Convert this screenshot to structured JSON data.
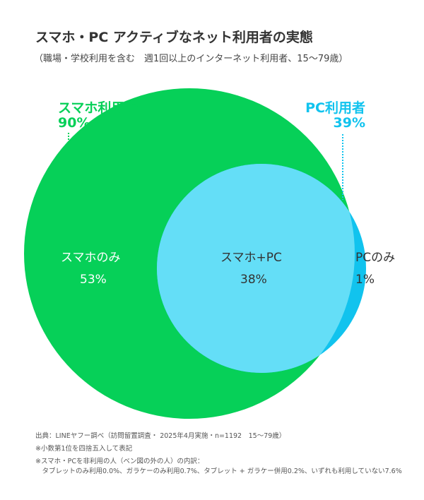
{
  "title": "スマホ・PC アクティブなネット利用者の実態",
  "subtitle": "（職場・学校利用を含む　週1回以上のインターネット利用者、15〜79歳）",
  "colors": {
    "smartphone": "#06d058",
    "pc": "#11c3ee",
    "overlap": "#64def7",
    "text": "#333333"
  },
  "sets": {
    "smartphone": {
      "label": "スマホ利用者",
      "value": "90%"
    },
    "pc": {
      "label": "PC利用者",
      "value": "39%"
    }
  },
  "regions": {
    "smartphone_only": {
      "label": "スマホのみ",
      "value": "53%"
    },
    "both": {
      "label": "スマホ+PC",
      "value": "38%"
    },
    "pc_only": {
      "label": "PCのみ",
      "value": "1%"
    }
  },
  "notes": [
    "出典：LINEヤフー調べ（訪問留置調査・ 2025年4月実施・n=1192　15〜79歳）",
    "※小数第1位を四捨五入して表記",
    "※スマホ・PCを非利用の人（ベン図の外の人）の内訳：",
    "　タブレットのみ利用0.0%、ガラケーのみ利用0.7%、タブレット + ガラケー併用0.2%、いずれも利用していない7.6%"
  ]
}
